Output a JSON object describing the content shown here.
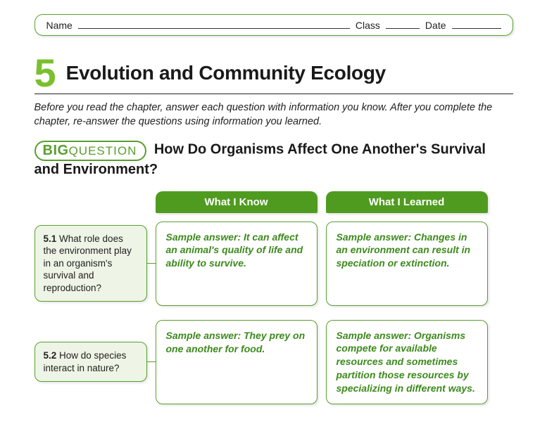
{
  "palette": {
    "green_border": "#5a9e2f",
    "green_fill": "#4f9b1f",
    "green_text": "#3c8a1c",
    "chapter_num": "#7abf2d",
    "qbox_bg": "#eef4e6",
    "text": "#1a1a1a"
  },
  "header": {
    "name_label": "Name",
    "class_label": "Class",
    "date_label": "Date"
  },
  "chapter": {
    "number": "5",
    "title": "Evolution and Community Ecology"
  },
  "intro": "Before you read the chapter, answer each question with information you know. After you complete the chapter, re-answer the questions using information you learned.",
  "bigq": {
    "badge_big": "BIG",
    "badge_question": "QUESTION",
    "text": "How Do Organisms Affect One Another's Survival and Environment?"
  },
  "columns": {
    "know": "What I Know",
    "learned": "What I Learned"
  },
  "rows": [
    {
      "num": "5.1",
      "question": " What role does the environment play in an organism's survival and reproduction?",
      "know": "Sample answer: It can affect an animal's quality of life and ability to survive.",
      "learned": "Sample answer: Changes in an environment can result in speciation or extinction."
    },
    {
      "num": "5.2",
      "question": " How do species interact in nature?",
      "know": "Sample answer: They prey on one another for food.",
      "learned": "Sample answer: Organisms compete for available resources and sometimes partition those resources by specializing in different ways."
    }
  ]
}
